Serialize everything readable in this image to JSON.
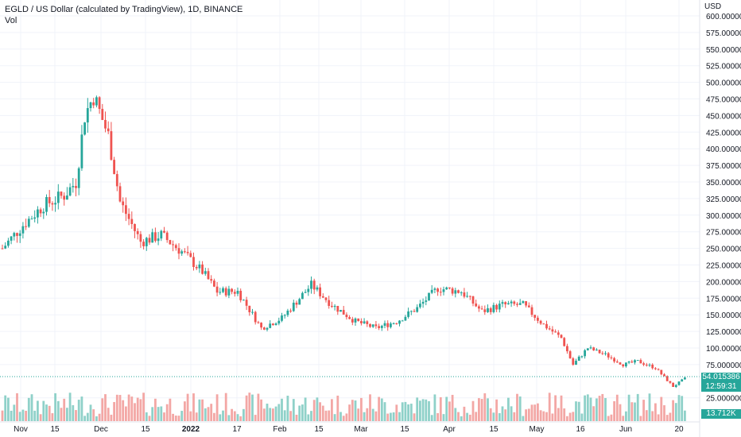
{
  "header": {
    "title": "EGLD / US Dollar (calculated by TradingView), 1D, BINANCE",
    "volume_label": "Vol"
  },
  "price_tag": {
    "price": "54.015386",
    "countdown": "12:59:31",
    "volume": "13.712K"
  },
  "colors": {
    "up": "#26a69a",
    "down": "#ef5350",
    "up_vol": "#8fd1c9",
    "down_vol": "#f3a7a5",
    "grid": "#f0f3fa",
    "text": "#131722"
  },
  "chart_data": {
    "type": "candlestick",
    "currency_label": "USD",
    "y_axis": {
      "ticks": [
        "600.000000",
        "575.000000",
        "550.000000",
        "525.000000",
        "500.000000",
        "475.000000",
        "450.000000",
        "425.000000",
        "400.000000",
        "375.000000",
        "350.000000",
        "325.000000",
        "300.000000",
        "275.000000",
        "250.000000",
        "225.000000",
        "200.000000",
        "175.000000",
        "150.000000",
        "125.000000",
        "100.000000",
        "75.000000",
        "25.000000"
      ],
      "ylim": [
        25,
        600
      ]
    },
    "x_axis": {
      "labels": [
        "Nov",
        "15",
        "Dec",
        "15",
        "2022",
        "17",
        "Feb",
        "15",
        "Mar",
        "15",
        "Apr",
        "15",
        "May",
        "16",
        "Jun",
        "20"
      ]
    },
    "price_path": [
      [
        "2021-10-29",
        250
      ],
      [
        "2021-11-05",
        285
      ],
      [
        "2021-11-12",
        315
      ],
      [
        "2021-11-19",
        330
      ],
      [
        "2021-11-23",
        350
      ],
      [
        "2021-11-26",
        450
      ],
      [
        "2021-11-29",
        480
      ],
      [
        "2021-12-04",
        420
      ],
      [
        "2021-12-08",
        320
      ],
      [
        "2021-12-15",
        260
      ],
      [
        "2021-12-22",
        270
      ],
      [
        "2021-12-29",
        245
      ],
      [
        "2022-01-05",
        215
      ],
      [
        "2022-01-10",
        185
      ],
      [
        "2022-01-17",
        185
      ],
      [
        "2022-01-25",
        130
      ],
      [
        "2022-02-01",
        145
      ],
      [
        "2022-02-06",
        170
      ],
      [
        "2022-02-11",
        195
      ],
      [
        "2022-02-18",
        165
      ],
      [
        "2022-02-26",
        140
      ],
      [
        "2022-03-05",
        130
      ],
      [
        "2022-03-12",
        140
      ],
      [
        "2022-03-19",
        160
      ],
      [
        "2022-03-26",
        190
      ],
      [
        "2022-04-03",
        185
      ],
      [
        "2022-04-10",
        155
      ],
      [
        "2022-04-17",
        165
      ],
      [
        "2022-04-24",
        165
      ],
      [
        "2022-05-01",
        135
      ],
      [
        "2022-05-07",
        115
      ],
      [
        "2022-05-11",
        75
      ],
      [
        "2022-05-16",
        100
      ],
      [
        "2022-05-22",
        90
      ],
      [
        "2022-05-28",
        75
      ],
      [
        "2022-06-02",
        80
      ],
      [
        "2022-06-08",
        70
      ],
      [
        "2022-06-14",
        42
      ],
      [
        "2022-06-18",
        54
      ]
    ]
  }
}
